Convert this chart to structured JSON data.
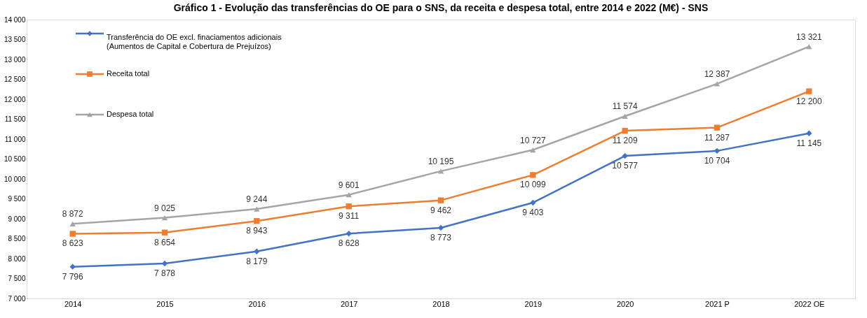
{
  "chart_data": {
    "type": "line",
    "title": "Gráfico 1 - Evolução das transferências do OE para o SNS, da receita e despesa total, entre 2014 e 2022 (M€) - SNS",
    "categories": [
      "2014",
      "2015",
      "2016",
      "2017",
      "2018",
      "2019",
      "2020",
      "2021 P",
      "2022 OE"
    ],
    "series": [
      {
        "name": "Transferência do OE excl. finaciamentos adicionais\n(Aumentos de Capital e Cobertura de Prejuízos)",
        "color": "#4472c4",
        "marker": "diamond",
        "values": [
          7796,
          7878,
          8179,
          8628,
          8773,
          9403,
          10577,
          10704,
          11145
        ]
      },
      {
        "name": "Receita total",
        "color": "#ed7d31",
        "marker": "square",
        "values": [
          8623,
          8654,
          8943,
          9311,
          9462,
          10099,
          11209,
          11287,
          12200
        ]
      },
      {
        "name": "Despesa total",
        "color": "#a5a5a5",
        "marker": "triangle",
        "values": [
          8872,
          9025,
          9244,
          9601,
          10195,
          10727,
          11574,
          12387,
          13321
        ]
      }
    ],
    "ylim": [
      7000,
      14000
    ],
    "yticks": [
      7000,
      7500,
      8000,
      8500,
      9000,
      9500,
      10000,
      10500,
      11000,
      11500,
      12000,
      12500,
      13000,
      13500,
      14000
    ],
    "grid": false,
    "legend": "top left",
    "data_labels": true
  }
}
